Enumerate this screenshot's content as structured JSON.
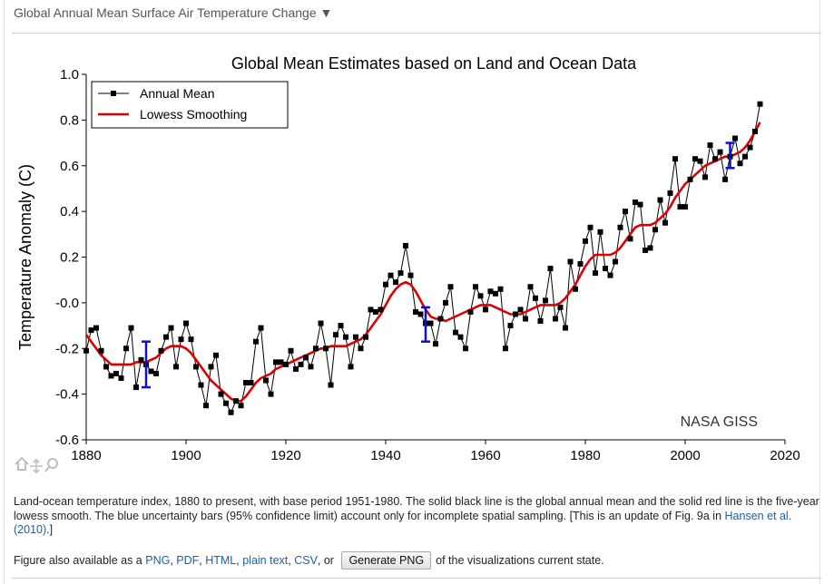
{
  "header": {
    "title": "Global Annual Mean Surface Air Temperature Change ▼"
  },
  "chart_data": {
    "type": "line",
    "title": "Global Mean Estimates based on Land and Ocean Data",
    "xlabel": "",
    "ylabel": "Temperature Anomaly (C)",
    "xlim": [
      1880,
      2020
    ],
    "ylim": [
      -0.6,
      1.0
    ],
    "xticks": [
      1880,
      1900,
      1920,
      1940,
      1960,
      1980,
      2000,
      2020
    ],
    "xtick_labels": [
      "1880",
      "1900",
      "1920",
      "1940",
      "1960",
      "1980",
      "2000",
      "2020"
    ],
    "yticks": [
      -0.6,
      -0.4,
      -0.2,
      0.0,
      0.2,
      0.4,
      0.6,
      0.8,
      1.0
    ],
    "ytick_labels": [
      "-0.6",
      "-0.4",
      "-0.2",
      "-0.0",
      "0.2",
      "0.4",
      "0.6",
      "0.8",
      "1.0"
    ],
    "legend_position": "top-left",
    "annotation": "NASA GISS",
    "x": [
      1880,
      1881,
      1882,
      1883,
      1884,
      1885,
      1886,
      1887,
      1888,
      1889,
      1890,
      1891,
      1892,
      1893,
      1894,
      1895,
      1896,
      1897,
      1898,
      1899,
      1900,
      1901,
      1902,
      1903,
      1904,
      1905,
      1906,
      1907,
      1908,
      1909,
      1910,
      1911,
      1912,
      1913,
      1914,
      1915,
      1916,
      1917,
      1918,
      1919,
      1920,
      1921,
      1922,
      1923,
      1924,
      1925,
      1926,
      1927,
      1928,
      1929,
      1930,
      1931,
      1932,
      1933,
      1934,
      1935,
      1936,
      1937,
      1938,
      1939,
      1940,
      1941,
      1942,
      1943,
      1944,
      1945,
      1946,
      1947,
      1948,
      1949,
      1950,
      1951,
      1952,
      1953,
      1954,
      1955,
      1956,
      1957,
      1958,
      1959,
      1960,
      1961,
      1962,
      1963,
      1964,
      1965,
      1966,
      1967,
      1968,
      1969,
      1970,
      1971,
      1972,
      1973,
      1974,
      1975,
      1976,
      1977,
      1978,
      1979,
      1980,
      1981,
      1982,
      1983,
      1984,
      1985,
      1986,
      1987,
      1988,
      1989,
      1990,
      1991,
      1992,
      1993,
      1994,
      1995,
      1996,
      1997,
      1998,
      1999,
      2000,
      2001,
      2002,
      2003,
      2004,
      2005,
      2006,
      2007,
      2008,
      2009,
      2010,
      2011,
      2012,
      2013,
      2014,
      2015
    ],
    "series": [
      {
        "name": "Annual Mean",
        "color": "#000000",
        "values": [
          -0.21,
          -0.12,
          -0.11,
          -0.21,
          -0.28,
          -0.32,
          -0.31,
          -0.33,
          -0.2,
          -0.11,
          -0.37,
          -0.25,
          -0.27,
          -0.3,
          -0.31,
          -0.21,
          -0.15,
          -0.11,
          -0.28,
          -0.16,
          -0.09,
          -0.16,
          -0.28,
          -0.36,
          -0.45,
          -0.28,
          -0.23,
          -0.4,
          -0.44,
          -0.48,
          -0.43,
          -0.45,
          -0.35,
          -0.35,
          -0.17,
          -0.11,
          -0.34,
          -0.4,
          -0.26,
          -0.26,
          -0.27,
          -0.21,
          -0.29,
          -0.27,
          -0.24,
          -0.28,
          -0.2,
          -0.09,
          -0.2,
          -0.36,
          -0.14,
          -0.1,
          -0.15,
          -0.28,
          -0.15,
          -0.2,
          -0.15,
          -0.03,
          -0.04,
          -0.03,
          0.08,
          0.12,
          0.09,
          0.13,
          0.25,
          0.12,
          -0.04,
          -0.05,
          -0.09,
          -0.09,
          -0.18,
          -0.07,
          0.0,
          0.07,
          -0.13,
          -0.15,
          -0.2,
          -0.04,
          0.07,
          0.03,
          -0.03,
          0.05,
          0.04,
          0.06,
          -0.2,
          -0.1,
          -0.05,
          -0.03,
          -0.07,
          0.07,
          0.02,
          -0.08,
          0.01,
          0.15,
          -0.07,
          -0.02,
          -0.11,
          0.18,
          0.06,
          0.17,
          0.27,
          0.33,
          0.13,
          0.31,
          0.15,
          0.12,
          0.18,
          0.33,
          0.4,
          0.28,
          0.44,
          0.43,
          0.23,
          0.24,
          0.32,
          0.45,
          0.35,
          0.48,
          0.63,
          0.42,
          0.42,
          0.54,
          0.63,
          0.62,
          0.55,
          0.69,
          0.63,
          0.66,
          0.54,
          0.64,
          0.72,
          0.61,
          0.64,
          0.68,
          0.75,
          0.87
        ]
      },
      {
        "name": "Lowess Smoothing",
        "color": "#dd0000",
        "values": [
          -0.14,
          -0.17,
          -0.2,
          -0.23,
          -0.25,
          -0.27,
          -0.27,
          -0.27,
          -0.27,
          -0.27,
          -0.26,
          -0.26,
          -0.26,
          -0.25,
          -0.24,
          -0.22,
          -0.2,
          -0.19,
          -0.19,
          -0.19,
          -0.2,
          -0.22,
          -0.25,
          -0.28,
          -0.31,
          -0.34,
          -0.36,
          -0.38,
          -0.4,
          -0.42,
          -0.43,
          -0.43,
          -0.41,
          -0.38,
          -0.35,
          -0.33,
          -0.32,
          -0.31,
          -0.29,
          -0.28,
          -0.27,
          -0.26,
          -0.25,
          -0.24,
          -0.23,
          -0.22,
          -0.21,
          -0.2,
          -0.2,
          -0.19,
          -0.19,
          -0.19,
          -0.19,
          -0.18,
          -0.17,
          -0.16,
          -0.14,
          -0.11,
          -0.08,
          -0.05,
          -0.01,
          0.03,
          0.06,
          0.08,
          0.09,
          0.08,
          0.05,
          0.01,
          -0.03,
          -0.06,
          -0.07,
          -0.07,
          -0.08,
          -0.07,
          -0.06,
          -0.05,
          -0.04,
          -0.03,
          -0.02,
          -0.01,
          -0.01,
          -0.01,
          -0.02,
          -0.03,
          -0.04,
          -0.05,
          -0.05,
          -0.05,
          -0.04,
          -0.03,
          -0.02,
          -0.01,
          -0.01,
          -0.01,
          -0.01,
          0.0,
          0.02,
          0.05,
          0.08,
          0.12,
          0.16,
          0.19,
          0.21,
          0.21,
          0.21,
          0.21,
          0.22,
          0.24,
          0.27,
          0.3,
          0.33,
          0.34,
          0.34,
          0.34,
          0.35,
          0.37,
          0.39,
          0.42,
          0.46,
          0.49,
          0.52,
          0.54,
          0.56,
          0.58,
          0.6,
          0.61,
          0.62,
          0.63,
          0.64,
          0.64,
          0.65,
          0.66,
          0.68,
          0.71,
          0.75,
          0.79
        ]
      }
    ],
    "uncertainty_bars": [
      {
        "x": 1892,
        "low": -0.37,
        "high": -0.17
      },
      {
        "x": 1948,
        "low": -0.17,
        "high": -0.02
      },
      {
        "x": 2009,
        "low": 0.59,
        "high": 0.7
      }
    ]
  },
  "colors": {
    "uncertainty": "#1010cc",
    "link": "#1a5fa8"
  },
  "tool_icons": [
    "home-icon",
    "pan-icon",
    "zoom-icon"
  ],
  "caption": {
    "text": "Land-ocean temperature index, 1880 to present, with base period 1951-1980. The solid black line is the global annual mean and the solid red line is the five-year lowess smooth. The blue uncertainty bars (95% confidence limit) account only for incomplete spatial sampling. [This is an update of Fig. 9a in ",
    "link": "Hansen et al. (2010)",
    "end": ".]"
  },
  "footer": {
    "prefix": "Figure also available as a ",
    "links": [
      "PNG",
      "PDF",
      "HTML",
      "plain text",
      "CSV"
    ],
    "sep1": ", ",
    "or_text": ", or ",
    "button": "Generate PNG",
    "suffix": " of the visualizations current state."
  }
}
